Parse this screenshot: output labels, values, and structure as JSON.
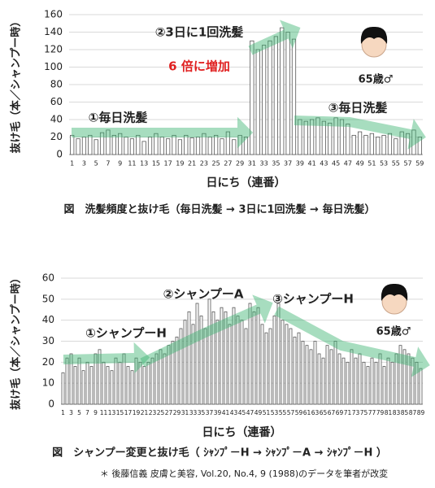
{
  "chart_data": [
    {
      "type": "bar",
      "ylabel": "抜け毛（本／シャンプー時）",
      "xlabel": "日にち（連番）",
      "caption": "図　洗髪頻度と抜け毛（毎日洗髪 → 3日に1回洗髪 → 毎日洗髪）",
      "annotations": [
        "①毎日洗髪",
        "②3日に1回洗髪",
        "6 倍に増加",
        "③毎日洗髪",
        "65歳♂"
      ],
      "categories": [
        1,
        2,
        3,
        4,
        5,
        6,
        7,
        8,
        9,
        10,
        11,
        12,
        13,
        14,
        15,
        16,
        17,
        18,
        19,
        20,
        21,
        22,
        23,
        24,
        25,
        26,
        27,
        28,
        29,
        30,
        31,
        32,
        33,
        34,
        35,
        36,
        37,
        38,
        39,
        40,
        41,
        42,
        43,
        44,
        45,
        46,
        47,
        48,
        49,
        50,
        51,
        52,
        53,
        54,
        55,
        56,
        57,
        58,
        59
      ],
      "values": [
        22,
        18,
        20,
        22,
        17,
        25,
        28,
        22,
        24,
        20,
        18,
        22,
        15,
        20,
        24,
        20,
        18,
        22,
        17,
        22,
        19,
        20,
        24,
        20,
        22,
        18,
        26,
        17,
        22,
        20,
        130,
        120,
        125,
        130,
        135,
        145,
        140,
        132,
        40,
        38,
        40,
        42,
        38,
        36,
        42,
        40,
        35,
        22,
        26,
        22,
        24,
        20,
        22,
        24,
        18,
        26,
        24,
        28,
        20
      ],
      "color": "#ffffff",
      "ylim": [
        0,
        160
      ],
      "yticks": [
        0,
        20,
        40,
        60,
        80,
        100,
        120,
        140,
        160
      ],
      "grid": true
    },
    {
      "type": "bar",
      "ylabel": "抜け毛（本／シャンプー時）",
      "xlabel": "日にち（連番）",
      "caption": "図　シャンプー変更と抜け毛（ ｼｬﾝﾌﾟ－H → ｼｬﾝﾌﾟ－A → ｼｬﾝﾌﾟ－H ）",
      "annotations": [
        "①シャンプーH",
        "②シャンプーA",
        "③シャンプーH",
        "65歳♂"
      ],
      "categories": [
        1,
        2,
        3,
        4,
        5,
        6,
        7,
        8,
        9,
        10,
        11,
        12,
        13,
        14,
        15,
        16,
        17,
        18,
        19,
        20,
        21,
        22,
        23,
        24,
        25,
        26,
        27,
        28,
        29,
        30,
        31,
        32,
        33,
        34,
        35,
        36,
        37,
        38,
        39,
        40,
        41,
        42,
        43,
        44,
        45,
        46,
        47,
        48,
        49,
        50,
        51,
        52,
        53,
        54,
        55,
        56,
        57,
        58,
        59,
        60,
        61,
        62,
        63,
        64,
        65,
        66,
        67,
        68,
        69,
        70,
        71,
        72,
        73,
        74,
        75,
        76,
        77,
        78,
        79,
        80,
        81,
        82,
        83,
        84,
        85,
        86,
        87,
        88,
        89
      ],
      "values": [
        15,
        22,
        24,
        18,
        22,
        16,
        20,
        18,
        24,
        26,
        20,
        18,
        16,
        22,
        20,
        24,
        18,
        16,
        22,
        20,
        18,
        20,
        22,
        24,
        26,
        24,
        28,
        30,
        32,
        36,
        40,
        44,
        38,
        48,
        42,
        36,
        50,
        44,
        40,
        46,
        44,
        38,
        46,
        42,
        40,
        36,
        48,
        44,
        46,
        38,
        34,
        36,
        42,
        48,
        40,
        38,
        36,
        32,
        34,
        30,
        28,
        26,
        30,
        24,
        22,
        28,
        26,
        30,
        24,
        22,
        20,
        26,
        22,
        24,
        20,
        18,
        22,
        20,
        24,
        18,
        22,
        20,
        24,
        28,
        26,
        24,
        22,
        20,
        17
      ],
      "color": "#ffffff",
      "ylim": [
        0,
        60
      ],
      "yticks": [
        0,
        10,
        20,
        30,
        40,
        50,
        60
      ],
      "grid": true
    }
  ],
  "footnote": "＊ 後藤信義  皮膚と美容, Vol.20, No.4, 9 (1988)のデータを筆者が改変"
}
